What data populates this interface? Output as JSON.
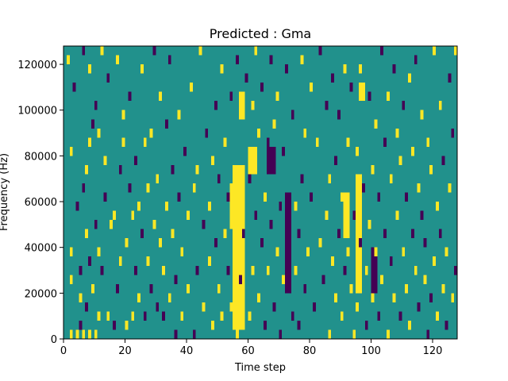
{
  "chart_data": {
    "type": "heatmap",
    "title": "Predicted : Gma",
    "xlabel": "Time step",
    "ylabel": "Frequency (Hz)",
    "xlim": [
      0,
      128
    ],
    "ylim": [
      0,
      128000
    ],
    "x_ticks": [
      0,
      20,
      40,
      60,
      80,
      100,
      120
    ],
    "y_ticks": [
      0,
      20000,
      40000,
      60000,
      80000,
      100000,
      120000
    ],
    "grid": false,
    "legend": "none",
    "cell_size": {
      "time_steps": 1,
      "frequency_hz": 4000
    },
    "colors": {
      "background": "#21918c",
      "high": "#fde725",
      "low": "#440154"
    },
    "bands": [
      {
        "level": "high",
        "x0": 55,
        "x1": 59,
        "y0": 4000,
        "y1": 76000
      },
      {
        "level": "high",
        "x0": 54,
        "x1": 58,
        "y0": 48000,
        "y1": 68000
      },
      {
        "level": "high",
        "x0": 60,
        "x1": 63,
        "y0": 72000,
        "y1": 84000
      },
      {
        "level": "low",
        "x0": 66,
        "x1": 69,
        "y0": 72000,
        "y1": 84000
      },
      {
        "level": "low",
        "x0": 72,
        "x1": 74,
        "y0": 20000,
        "y1": 64000
      },
      {
        "level": "high",
        "x0": 95,
        "x1": 97,
        "y0": 20000,
        "y1": 72000
      },
      {
        "level": "high",
        "x0": 91,
        "x1": 93,
        "y0": 44000,
        "y1": 64000
      },
      {
        "level": "low",
        "x0": 100,
        "x1": 102,
        "y0": 20000,
        "y1": 40000
      },
      {
        "level": "high",
        "x0": 57,
        "x1": 59,
        "y0": 96000,
        "y1": 108000
      },
      {
        "level": "high",
        "x0": 96,
        "x1": 98,
        "y0": 104000,
        "y1": 112000
      }
    ],
    "cells": [
      [
        1,
        120000,
        "high"
      ],
      [
        2,
        0,
        "high"
      ],
      [
        2,
        24000,
        "high"
      ],
      [
        2,
        36000,
        "high"
      ],
      [
        2,
        80000,
        "high"
      ],
      [
        3,
        108000,
        "low"
      ],
      [
        4,
        0,
        "high"
      ],
      [
        4,
        56000,
        "low"
      ],
      [
        5,
        4000,
        "low"
      ],
      [
        5,
        16000,
        "high"
      ],
      [
        5,
        28000,
        "low"
      ],
      [
        6,
        124000,
        "low"
      ],
      [
        6,
        0,
        "high"
      ],
      [
        6,
        64000,
        "low"
      ],
      [
        7,
        12000,
        "low"
      ],
      [
        7,
        44000,
        "high"
      ],
      [
        7,
        72000,
        "high"
      ],
      [
        8,
        0,
        "high"
      ],
      [
        8,
        32000,
        "low"
      ],
      [
        8,
        116000,
        "high"
      ],
      [
        8,
        84000,
        "high"
      ],
      [
        9,
        20000,
        "high"
      ],
      [
        9,
        92000,
        "low"
      ],
      [
        10,
        0,
        "high"
      ],
      [
        10,
        48000,
        "low"
      ],
      [
        10,
        100000,
        "low"
      ],
      [
        11,
        8000,
        "high"
      ],
      [
        11,
        36000,
        "high"
      ],
      [
        11,
        88000,
        "high"
      ],
      [
        12,
        28000,
        "low"
      ],
      [
        12,
        124000,
        "high"
      ],
      [
        13,
        76000,
        "high"
      ],
      [
        13,
        60000,
        "low"
      ],
      [
        14,
        8000,
        "high"
      ],
      [
        14,
        112000,
        "low"
      ],
      [
        15,
        48000,
        "high"
      ],
      [
        16,
        52000,
        "high"
      ],
      [
        16,
        4000,
        "low"
      ],
      [
        17,
        120000,
        "high"
      ],
      [
        17,
        20000,
        "low"
      ],
      [
        18,
        32000,
        "high"
      ],
      [
        18,
        72000,
        "low"
      ],
      [
        19,
        84000,
        "high"
      ],
      [
        19,
        96000,
        "high"
      ],
      [
        20,
        40000,
        "high"
      ],
      [
        20,
        4000,
        "high"
      ],
      [
        21,
        104000,
        "low"
      ],
      [
        21,
        64000,
        "low"
      ],
      [
        22,
        8000,
        "high"
      ],
      [
        22,
        52000,
        "high"
      ],
      [
        23,
        28000,
        "low"
      ],
      [
        23,
        76000,
        "low"
      ],
      [
        24,
        16000,
        "high"
      ],
      [
        24,
        56000,
        "high"
      ],
      [
        25,
        44000,
        "low"
      ],
      [
        25,
        116000,
        "high"
      ],
      [
        26,
        8000,
        "low"
      ],
      [
        26,
        84000,
        "high"
      ],
      [
        27,
        32000,
        "high"
      ],
      [
        27,
        64000,
        "high"
      ],
      [
        28,
        20000,
        "low"
      ],
      [
        28,
        88000,
        "high"
      ],
      [
        29,
        48000,
        "high"
      ],
      [
        29,
        124000,
        "low"
      ],
      [
        30,
        12000,
        "low"
      ],
      [
        30,
        68000,
        "high"
      ],
      [
        31,
        40000,
        "high"
      ],
      [
        31,
        104000,
        "high"
      ],
      [
        32,
        28000,
        "high"
      ],
      [
        32,
        8000,
        "low"
      ],
      [
        33,
        56000,
        "high"
      ],
      [
        33,
        92000,
        "low"
      ],
      [
        34,
        16000,
        "high"
      ],
      [
        34,
        120000,
        "low"
      ],
      [
        35,
        44000,
        "high"
      ],
      [
        35,
        72000,
        "low"
      ],
      [
        36,
        0,
        "low"
      ],
      [
        36,
        24000,
        "low"
      ],
      [
        37,
        60000,
        "low"
      ],
      [
        37,
        96000,
        "high"
      ],
      [
        38,
        8000,
        "high"
      ],
      [
        38,
        36000,
        "high"
      ],
      [
        39,
        80000,
        "low"
      ],
      [
        40,
        52000,
        "high"
      ],
      [
        40,
        20000,
        "high"
      ],
      [
        41,
        108000,
        "high"
      ],
      [
        42,
        64000,
        "high"
      ],
      [
        42,
        0,
        "low"
      ],
      [
        43,
        28000,
        "low"
      ],
      [
        43,
        72000,
        "high"
      ],
      [
        44,
        124000,
        "high"
      ],
      [
        45,
        12000,
        "high"
      ],
      [
        45,
        48000,
        "low"
      ],
      [
        46,
        88000,
        "low"
      ],
      [
        47,
        56000,
        "high"
      ],
      [
        47,
        32000,
        "high"
      ],
      [
        48,
        4000,
        "high"
      ],
      [
        48,
        76000,
        "high"
      ],
      [
        49,
        40000,
        "low"
      ],
      [
        49,
        100000,
        "low"
      ],
      [
        50,
        20000,
        "high"
      ],
      [
        50,
        68000,
        "low"
      ],
      [
        51,
        116000,
        "high"
      ],
      [
        51,
        8000,
        "high"
      ],
      [
        52,
        44000,
        "high"
      ],
      [
        52,
        84000,
        "high"
      ],
      [
        53,
        28000,
        "low"
      ],
      [
        53,
        60000,
        "low"
      ],
      [
        54,
        12000,
        "high"
      ],
      [
        54,
        104000,
        "low"
      ],
      [
        55,
        36000,
        "high"
      ],
      [
        56,
        0,
        "high"
      ],
      [
        56,
        120000,
        "low"
      ],
      [
        57,
        24000,
        "low"
      ],
      [
        58,
        44000,
        "low"
      ],
      [
        59,
        112000,
        "low"
      ],
      [
        60,
        8000,
        "high"
      ],
      [
        60,
        68000,
        "low"
      ],
      [
        61,
        28000,
        "high"
      ],
      [
        61,
        100000,
        "high"
      ],
      [
        62,
        52000,
        "low"
      ],
      [
        62,
        124000,
        "high"
      ],
      [
        63,
        16000,
        "high"
      ],
      [
        63,
        88000,
        "high"
      ],
      [
        64,
        40000,
        "low"
      ],
      [
        64,
        108000,
        "low"
      ],
      [
        65,
        4000,
        "low"
      ],
      [
        65,
        60000,
        "high"
      ],
      [
        66,
        28000,
        "high"
      ],
      [
        66,
        84000,
        "low"
      ],
      [
        67,
        48000,
        "low"
      ],
      [
        67,
        120000,
        "low"
      ],
      [
        68,
        12000,
        "low"
      ],
      [
        68,
        92000,
        "high"
      ],
      [
        69,
        36000,
        "high"
      ],
      [
        69,
        104000,
        "high"
      ],
      [
        70,
        0,
        "low"
      ],
      [
        70,
        56000,
        "low"
      ],
      [
        71,
        24000,
        "high"
      ],
      [
        71,
        80000,
        "low"
      ],
      [
        72,
        116000,
        "low"
      ],
      [
        74,
        8000,
        "low"
      ],
      [
        74,
        96000,
        "low"
      ],
      [
        75,
        28000,
        "high"
      ],
      [
        75,
        56000,
        "high"
      ],
      [
        76,
        44000,
        "low"
      ],
      [
        76,
        4000,
        "low"
      ],
      [
        77,
        68000,
        "low"
      ],
      [
        77,
        120000,
        "high"
      ],
      [
        78,
        20000,
        "low"
      ],
      [
        78,
        88000,
        "high"
      ],
      [
        79,
        36000,
        "high"
      ],
      [
        80,
        60000,
        "low"
      ],
      [
        80,
        108000,
        "high"
      ],
      [
        81,
        12000,
        "low"
      ],
      [
        82,
        84000,
        "high"
      ],
      [
        83,
        40000,
        "high"
      ],
      [
        83,
        124000,
        "low"
      ],
      [
        84,
        24000,
        "low"
      ],
      [
        85,
        52000,
        "high"
      ],
      [
        85,
        100000,
        "low"
      ],
      [
        86,
        0,
        "high"
      ],
      [
        86,
        68000,
        "high"
      ],
      [
        87,
        32000,
        "high"
      ],
      [
        87,
        112000,
        "low"
      ],
      [
        88,
        16000,
        "high"
      ],
      [
        88,
        76000,
        "low"
      ],
      [
        89,
        44000,
        "low"
      ],
      [
        89,
        96000,
        "low"
      ],
      [
        90,
        8000,
        "high"
      ],
      [
        90,
        60000,
        "high"
      ],
      [
        91,
        28000,
        "low"
      ],
      [
        91,
        116000,
        "high"
      ],
      [
        92,
        36000,
        "high"
      ],
      [
        92,
        84000,
        "high"
      ],
      [
        93,
        20000,
        "high"
      ],
      [
        93,
        108000,
        "low"
      ],
      [
        94,
        0,
        "high"
      ],
      [
        94,
        52000,
        "low"
      ],
      [
        95,
        12000,
        "high"
      ],
      [
        95,
        80000,
        "high"
      ],
      [
        96,
        40000,
        "low"
      ],
      [
        96,
        116000,
        "high"
      ],
      [
        97,
        64000,
        "low"
      ],
      [
        98,
        4000,
        "low"
      ],
      [
        98,
        28000,
        "high"
      ],
      [
        99,
        48000,
        "high"
      ],
      [
        99,
        104000,
        "low"
      ],
      [
        100,
        16000,
        "high"
      ],
      [
        100,
        72000,
        "high"
      ],
      [
        101,
        36000,
        "high"
      ],
      [
        101,
        92000,
        "high"
      ],
      [
        102,
        8000,
        "low"
      ],
      [
        102,
        60000,
        "low"
      ],
      [
        103,
        24000,
        "high"
      ],
      [
        103,
        124000,
        "low"
      ],
      [
        104,
        44000,
        "low"
      ],
      [
        104,
        84000,
        "low"
      ],
      [
        105,
        0,
        "high"
      ],
      [
        105,
        104000,
        "high"
      ],
      [
        106,
        32000,
        "low"
      ],
      [
        106,
        68000,
        "high"
      ],
      [
        107,
        16000,
        "high"
      ],
      [
        107,
        116000,
        "low"
      ],
      [
        108,
        52000,
        "high"
      ],
      [
        108,
        88000,
        "high"
      ],
      [
        109,
        8000,
        "low"
      ],
      [
        109,
        76000,
        "high"
      ],
      [
        110,
        36000,
        "high"
      ],
      [
        110,
        100000,
        "low"
      ],
      [
        111,
        20000,
        "high"
      ],
      [
        111,
        60000,
        "low"
      ],
      [
        112,
        4000,
        "high"
      ],
      [
        112,
        112000,
        "high"
      ],
      [
        113,
        44000,
        "low"
      ],
      [
        113,
        80000,
        "high"
      ],
      [
        114,
        28000,
        "high"
      ],
      [
        114,
        120000,
        "low"
      ],
      [
        115,
        12000,
        "low"
      ],
      [
        115,
        64000,
        "high"
      ],
      [
        116,
        52000,
        "low"
      ],
      [
        116,
        96000,
        "high"
      ],
      [
        117,
        24000,
        "high"
      ],
      [
        117,
        40000,
        "low"
      ],
      [
        118,
        0,
        "low"
      ],
      [
        118,
        84000,
        "high"
      ],
      [
        119,
        16000,
        "low"
      ],
      [
        119,
        72000,
        "high"
      ],
      [
        120,
        32000,
        "high"
      ],
      [
        120,
        124000,
        "high"
      ],
      [
        121,
        8000,
        "high"
      ],
      [
        121,
        56000,
        "high"
      ],
      [
        122,
        44000,
        "low"
      ],
      [
        122,
        100000,
        "high"
      ],
      [
        123,
        20000,
        "high"
      ],
      [
        123,
        76000,
        "low"
      ],
      [
        124,
        4000,
        "low"
      ],
      [
        124,
        36000,
        "high"
      ],
      [
        125,
        64000,
        "high"
      ],
      [
        125,
        112000,
        "low"
      ],
      [
        126,
        16000,
        "high"
      ],
      [
        126,
        88000,
        "low"
      ],
      [
        127,
        28000,
        "low"
      ],
      [
        127,
        124000,
        "high"
      ]
    ]
  }
}
